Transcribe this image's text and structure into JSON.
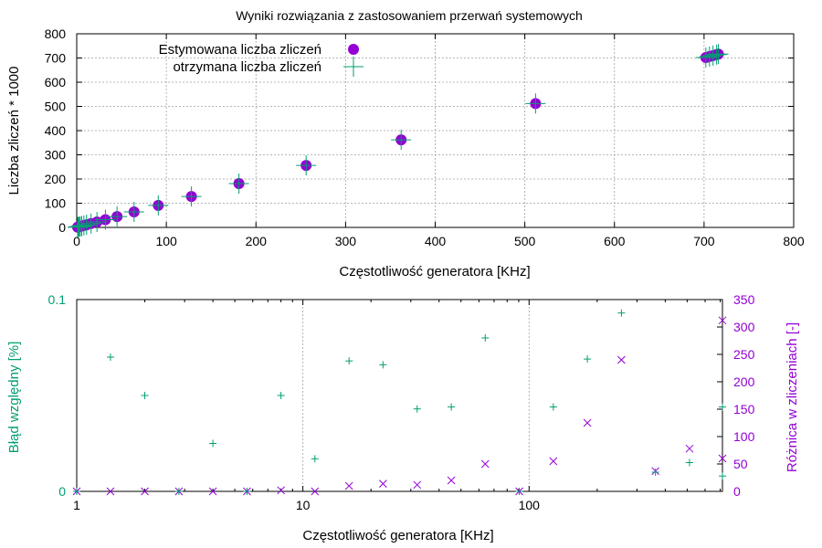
{
  "chart_data": [
    {
      "type": "scatter",
      "title": "Wyniki rozwiązania z zastosowaniem przerwań systemowych",
      "xlabel": "Częstotliwość generatora [KHz]",
      "ylabel": "Liczba zliczeń * 1000",
      "xlim": [
        0,
        800
      ],
      "ylim": [
        0,
        800
      ],
      "xticks": [
        "0",
        "100",
        "200",
        "300",
        "400",
        "500",
        "600",
        "700",
        "800"
      ],
      "yticks": [
        "0",
        "100",
        "200",
        "300",
        "400",
        "500",
        "600",
        "700",
        "800"
      ],
      "grid": true,
      "legend_position": "top-left",
      "series": [
        {
          "name": "Estymowana liczba zliczeń",
          "marker": "filled-circle",
          "color": "#9400d3",
          "x": [
            1,
            1.4,
            2,
            2.8,
            4,
            5.6,
            8,
            11,
            16,
            22.6,
            32,
            45,
            64,
            91,
            128,
            181,
            256,
            362,
            512,
            702,
            706,
            710,
            714,
            716
          ],
          "y": [
            1,
            1.4,
            2,
            2.8,
            4,
            5.6,
            8,
            11,
            16,
            22.6,
            32,
            45,
            64,
            91,
            128,
            181,
            256,
            362,
            512,
            702,
            706,
            710,
            714,
            716
          ]
        },
        {
          "name": "otrzymana liczba zliczeń",
          "marker": "plus",
          "color": "#009e73",
          "x": [
            1,
            1.4,
            2,
            2.8,
            4,
            5.6,
            8,
            11,
            16,
            22.6,
            32,
            45,
            64,
            91,
            128,
            181,
            256,
            362,
            512,
            702,
            706,
            710,
            714,
            716
          ],
          "y": [
            1,
            1.4,
            2,
            2.8,
            4,
            5.6,
            8,
            11,
            16,
            22.6,
            32,
            45,
            64,
            91,
            128,
            181,
            256,
            362,
            512,
            702,
            706,
            710,
            714,
            716
          ]
        }
      ]
    },
    {
      "type": "scatter",
      "xlabel": "Częstotliwość generatora [KHz]",
      "ylabel": "Błąd względny [%]",
      "y2label": "Różnica w zliczeniach [-]",
      "xscale": "log",
      "xlim": [
        1,
        716
      ],
      "ylim": [
        0,
        0.1
      ],
      "y2lim": [
        0,
        350
      ],
      "xticks": [
        "1",
        "10",
        "100"
      ],
      "yticks": [
        "0",
        "0.1"
      ],
      "y2ticks": [
        "0",
        "50",
        "100",
        "150",
        "200",
        "250",
        "300",
        "350"
      ],
      "grid": true,
      "colors": {
        "left_axis": "#009e73",
        "right_axis": "#9400d3"
      },
      "series": [
        {
          "axis": "left",
          "marker": "plus",
          "color": "#009e73",
          "x": [
            1,
            1.41,
            2,
            2.83,
            4,
            5.66,
            8,
            11.3,
            16,
            22.6,
            32,
            45.3,
            64,
            90.5,
            128,
            181,
            256,
            362,
            512,
            716,
            716
          ],
          "y": [
            0,
            0.07,
            0.05,
            0,
            0.025,
            0,
            0.05,
            0.017,
            0.068,
            0.066,
            0.043,
            0.044,
            0.08,
            0,
            0.044,
            0.069,
            0.093,
            0.01,
            0.015,
            0.044,
            0.008
          ]
        },
        {
          "axis": "right",
          "marker": "cross",
          "color": "#9400d3",
          "x": [
            1,
            1.41,
            2,
            2.83,
            4,
            5.66,
            8,
            11.3,
            16,
            22.6,
            32,
            45.3,
            64,
            90.5,
            128,
            181,
            256,
            362,
            512,
            716,
            716
          ],
          "y": [
            0,
            0,
            0,
            0,
            0,
            0,
            2,
            0,
            10,
            14,
            12,
            20,
            50,
            0,
            55,
            125,
            240,
            37,
            78,
            60,
            312
          ]
        }
      ]
    }
  ]
}
